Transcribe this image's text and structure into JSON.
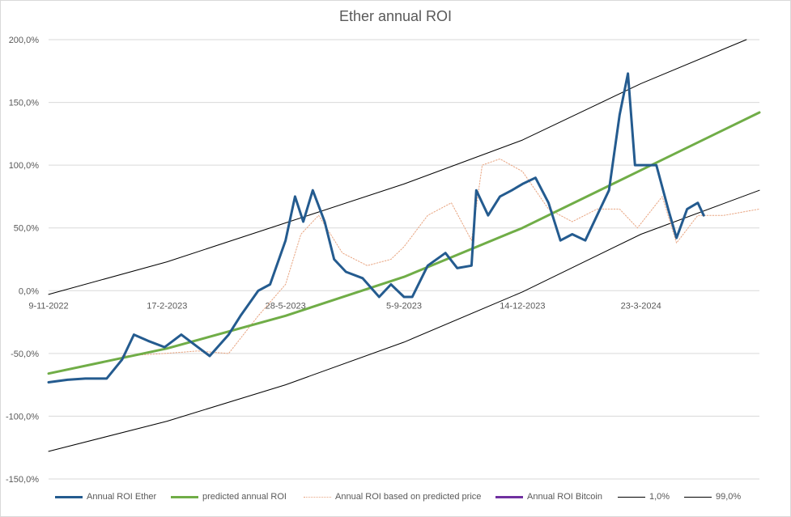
{
  "chart_data": {
    "type": "line",
    "title": "Ether annual ROI",
    "xlabel": "",
    "ylabel": "",
    "x_tick_labels": [
      "9-11-2022",
      "17-2-2023",
      "28-5-2023",
      "5-9-2023",
      "14-12-2023",
      "23-3-2024"
    ],
    "y_tick_labels": [
      "200,0%",
      "150,0%",
      "100,0%",
      "50,0%",
      "0,0%",
      "-50,0%",
      "-100,0%",
      "-150,0%"
    ],
    "ylim": [
      -150,
      200
    ],
    "grid": "horizontal",
    "legend_position": "bottom",
    "series": [
      {
        "name": "Annual ROI Ether",
        "color": "#245b8f",
        "points": [
          [
            "2022-11-09",
            -73
          ],
          [
            "2022-11-25",
            -71
          ],
          [
            "2022-12-10",
            -70
          ],
          [
            "2022-12-28",
            -70
          ],
          [
            "2023-01-10",
            -55
          ],
          [
            "2023-01-20",
            -35
          ],
          [
            "2023-02-01",
            -40
          ],
          [
            "2023-02-15",
            -45
          ],
          [
            "2023-03-01",
            -35
          ],
          [
            "2023-03-15",
            -45
          ],
          [
            "2023-03-25",
            -52
          ],
          [
            "2023-04-10",
            -35
          ],
          [
            "2023-04-20",
            -20
          ],
          [
            "2023-05-05",
            0
          ],
          [
            "2023-05-15",
            5
          ],
          [
            "2023-05-28",
            40
          ],
          [
            "2023-06-05",
            75
          ],
          [
            "2023-06-12",
            55
          ],
          [
            "2023-06-20",
            80
          ],
          [
            "2023-06-30",
            55
          ],
          [
            "2023-07-08",
            25
          ],
          [
            "2023-07-18",
            15
          ],
          [
            "2023-08-01",
            10
          ],
          [
            "2023-08-15",
            -5
          ],
          [
            "2023-08-25",
            5
          ],
          [
            "2023-09-05",
            -5
          ],
          [
            "2023-09-12",
            -5
          ],
          [
            "2023-09-25",
            20
          ],
          [
            "2023-10-10",
            30
          ],
          [
            "2023-10-20",
            18
          ],
          [
            "2023-11-01",
            20
          ],
          [
            "2023-11-05",
            80
          ],
          [
            "2023-11-15",
            60
          ],
          [
            "2023-11-25",
            75
          ],
          [
            "2023-12-05",
            80
          ],
          [
            "2023-12-14",
            85
          ],
          [
            "2023-12-25",
            90
          ],
          [
            "2024-01-05",
            70
          ],
          [
            "2024-01-15",
            40
          ],
          [
            "2024-01-25",
            45
          ],
          [
            "2024-02-05",
            40
          ],
          [
            "2024-02-15",
            60
          ],
          [
            "2024-02-25",
            80
          ],
          [
            "2024-03-05",
            140
          ],
          [
            "2024-03-12",
            173
          ],
          [
            "2024-03-18",
            100
          ],
          [
            "2024-03-25",
            100
          ],
          [
            "2024-04-05",
            100
          ],
          [
            "2024-04-15",
            65
          ],
          [
            "2024-04-22",
            42
          ],
          [
            "2024-05-01",
            65
          ],
          [
            "2024-05-10",
            70
          ],
          [
            "2024-05-15",
            60
          ]
        ]
      },
      {
        "name": "predicted  annual ROI",
        "color": "#70ad47",
        "points": [
          [
            "2022-11-09",
            -66
          ],
          [
            "2023-02-17",
            -46
          ],
          [
            "2023-05-28",
            -20
          ],
          [
            "2023-09-05",
            11
          ],
          [
            "2023-12-14",
            50
          ],
          [
            "2024-03-23",
            96
          ],
          [
            "2024-07-01",
            142
          ]
        ]
      },
      {
        "name": "Annual ROI based on predicted price",
        "color": "#e8a480",
        "points": [
          [
            "2023-01-10",
            -52
          ],
          [
            "2023-02-15",
            -50
          ],
          [
            "2023-03-15",
            -48
          ],
          [
            "2023-04-10",
            -50
          ],
          [
            "2023-05-05",
            -20
          ],
          [
            "2023-05-28",
            5
          ],
          [
            "2023-06-10",
            45
          ],
          [
            "2023-06-25",
            60
          ],
          [
            "2023-07-15",
            30
          ],
          [
            "2023-08-05",
            20
          ],
          [
            "2023-08-25",
            25
          ],
          [
            "2023-09-05",
            35
          ],
          [
            "2023-09-25",
            60
          ],
          [
            "2023-10-15",
            70
          ],
          [
            "2023-11-01",
            40
          ],
          [
            "2023-11-10",
            100
          ],
          [
            "2023-11-25",
            105
          ],
          [
            "2023-12-14",
            95
          ],
          [
            "2024-01-05",
            65
          ],
          [
            "2024-01-25",
            55
          ],
          [
            "2024-02-15",
            65
          ],
          [
            "2024-03-05",
            65
          ],
          [
            "2024-03-20",
            50
          ],
          [
            "2024-04-10",
            75
          ],
          [
            "2024-04-22",
            38
          ],
          [
            "2024-05-10",
            60
          ],
          [
            "2024-06-01",
            60
          ],
          [
            "2024-07-01",
            65
          ]
        ]
      },
      {
        "name": "Annual ROI Bitcoin",
        "color": "#7030a0",
        "points": []
      },
      {
        "name": "1,0%",
        "color": "#000000",
        "points": [
          [
            "2022-11-09",
            -128
          ],
          [
            "2023-02-17",
            -104
          ],
          [
            "2023-05-28",
            -75
          ],
          [
            "2023-09-05",
            -41
          ],
          [
            "2023-12-14",
            -1
          ],
          [
            "2024-03-23",
            45
          ],
          [
            "2024-07-01",
            80
          ]
        ]
      },
      {
        "name": "99,0%",
        "color": "#000000",
        "points": [
          [
            "2022-11-09",
            -3
          ],
          [
            "2023-02-17",
            23
          ],
          [
            "2023-05-28",
            54
          ],
          [
            "2023-09-05",
            85
          ],
          [
            "2023-12-14",
            120
          ],
          [
            "2024-03-23",
            165
          ],
          [
            "2024-06-20",
            200
          ]
        ]
      }
    ]
  }
}
